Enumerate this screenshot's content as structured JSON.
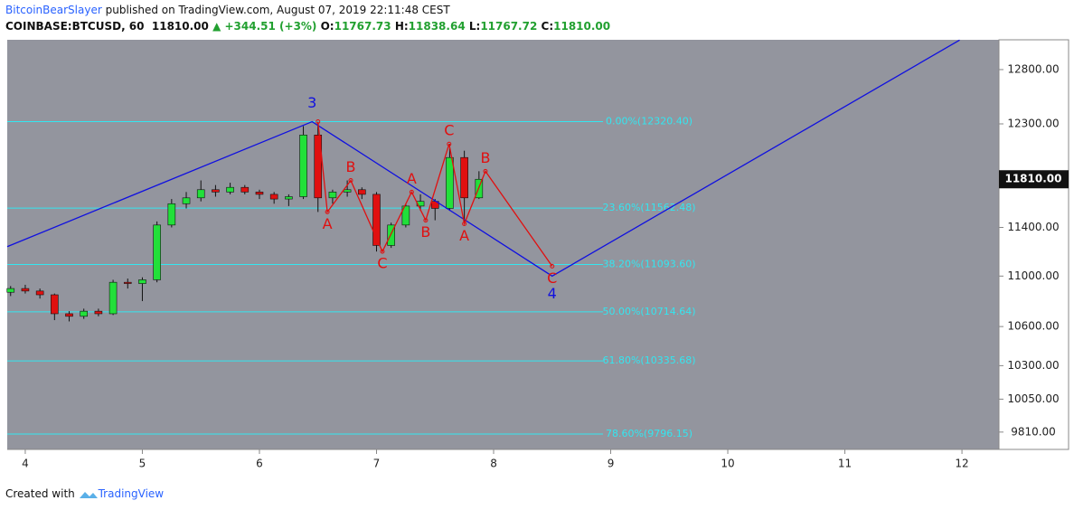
{
  "header": {
    "author": "BitcoinBearSlayer",
    "published": "published on TradingView.com, August 07, 2019 22:11:48 CEST",
    "symbol": "COINBASE:BTCUSD, 60",
    "last": "11810.00",
    "change": "▲ +344.51 (+3%)",
    "o_label": "O:",
    "o": "11767.73",
    "h_label": "H:",
    "h": "11838.64",
    "l_label": "L:",
    "l": "11767.72",
    "c_label": "C:",
    "c": "11810.00"
  },
  "footer": {
    "created": "Created with",
    "brand": "TradingView"
  },
  "chart_data": {
    "type": "candlestick",
    "log_scale": true,
    "x": [
      3.875,
      4.0,
      4.125,
      4.25,
      4.375,
      4.5,
      4.625,
      4.75,
      4.875,
      5.0,
      5.125,
      5.25,
      5.375,
      5.5,
      5.625,
      5.75,
      5.875,
      6.0,
      6.125,
      6.25,
      6.375,
      6.5,
      6.625,
      6.75,
      6.875,
      7.0,
      7.125,
      7.25,
      7.375,
      7.5,
      7.625,
      7.75,
      7.875
    ],
    "open": [
      10870,
      10900,
      10880,
      10850,
      10700,
      10680,
      10720,
      10700,
      10950,
      10940,
      10970,
      11420,
      11600,
      11650,
      11720,
      11700,
      11740,
      11700,
      11680,
      11640,
      11660,
      12200,
      11650,
      11700,
      11720,
      11680,
      11250,
      11420,
      11580,
      11620,
      11560,
      12000,
      11650
    ],
    "high": [
      10920,
      10930,
      10900,
      10860,
      10720,
      10740,
      10740,
      10970,
      10980,
      10990,
      11450,
      11640,
      11700,
      11800,
      11760,
      11780,
      11760,
      11720,
      11700,
      11680,
      12280,
      12320,
      11720,
      11800,
      11740,
      11700,
      11440,
      11600,
      11680,
      11640,
      12120,
      12060,
      11880
    ],
    "low": [
      10840,
      10860,
      10820,
      10650,
      10640,
      10660,
      10680,
      10690,
      10900,
      10800,
      10950,
      11400,
      11560,
      11620,
      11660,
      11680,
      11680,
      11640,
      11600,
      11580,
      11640,
      11530,
      11600,
      11660,
      11640,
      11200,
      11230,
      11400,
      11540,
      11460,
      11540,
      11430,
      11640
    ],
    "close": [
      10900,
      10880,
      10850,
      10700,
      10680,
      10720,
      10700,
      10950,
      10940,
      10970,
      11420,
      11600,
      11650,
      11720,
      11700,
      11740,
      11700,
      11680,
      11640,
      11660,
      12200,
      11650,
      11700,
      11720,
      11680,
      11250,
      11420,
      11580,
      11620,
      11560,
      12000,
      11650,
      11810
    ],
    "up_color": "#22e03a",
    "down_color": "#e01010",
    "xlim": [
      3.846,
      12.316
    ],
    "ylim": [
      9686,
      13083
    ],
    "xticks": [
      4,
      5,
      6,
      7,
      8,
      9,
      10,
      11,
      12
    ],
    "yticks": [
      {
        "value": 12800,
        "label": "12800.00"
      },
      {
        "value": 12300,
        "label": "12300.00"
      },
      {
        "value": 11400,
        "label": "11400.00"
      },
      {
        "value": 11000,
        "label": "11000.00"
      },
      {
        "value": 10600,
        "label": "10600.00"
      },
      {
        "value": 10300,
        "label": "10300.00"
      },
      {
        "value": 10050,
        "label": "10050.00"
      },
      {
        "value": 9810,
        "label": "9810.00"
      }
    ],
    "last_price": {
      "value": 11810,
      "label": "11810.00"
    },
    "fib_color": "#33e6f0",
    "fib_levels": [
      {
        "value": 12320.4,
        "label": "0.00%(12320.40)"
      },
      {
        "value": 11562.48,
        "label": "23.60%(11562.48)"
      },
      {
        "value": 11093.6,
        "label": "38.20%(11093.60)"
      },
      {
        "value": 10714.64,
        "label": "50.00%(10714.64)"
      },
      {
        "value": 10335.68,
        "label": "61.80%(10335.68)"
      },
      {
        "value": 9796.15,
        "label": "78.60%(9796.15)"
      }
    ],
    "waves": [
      {
        "color": "#1010e0",
        "x": [
          3.846,
          6.45,
          8.5,
          11.98
        ],
        "values": [
          11240,
          12320,
          11000,
          13080
        ],
        "labels": [
          null,
          "3",
          "4",
          null
        ]
      },
      {
        "color": "#e01010",
        "x": [
          6.5,
          6.58,
          6.78,
          7.05,
          7.3,
          7.42,
          7.62,
          7.75,
          7.93,
          8.5
        ],
        "values": [
          12320,
          11530,
          11800,
          11200,
          11700,
          11460,
          12120,
          11430,
          11880,
          11080
        ],
        "labels": [
          null,
          "A",
          "B",
          "C",
          "A",
          "B",
          "C",
          "A",
          "B",
          "C"
        ]
      }
    ]
  }
}
